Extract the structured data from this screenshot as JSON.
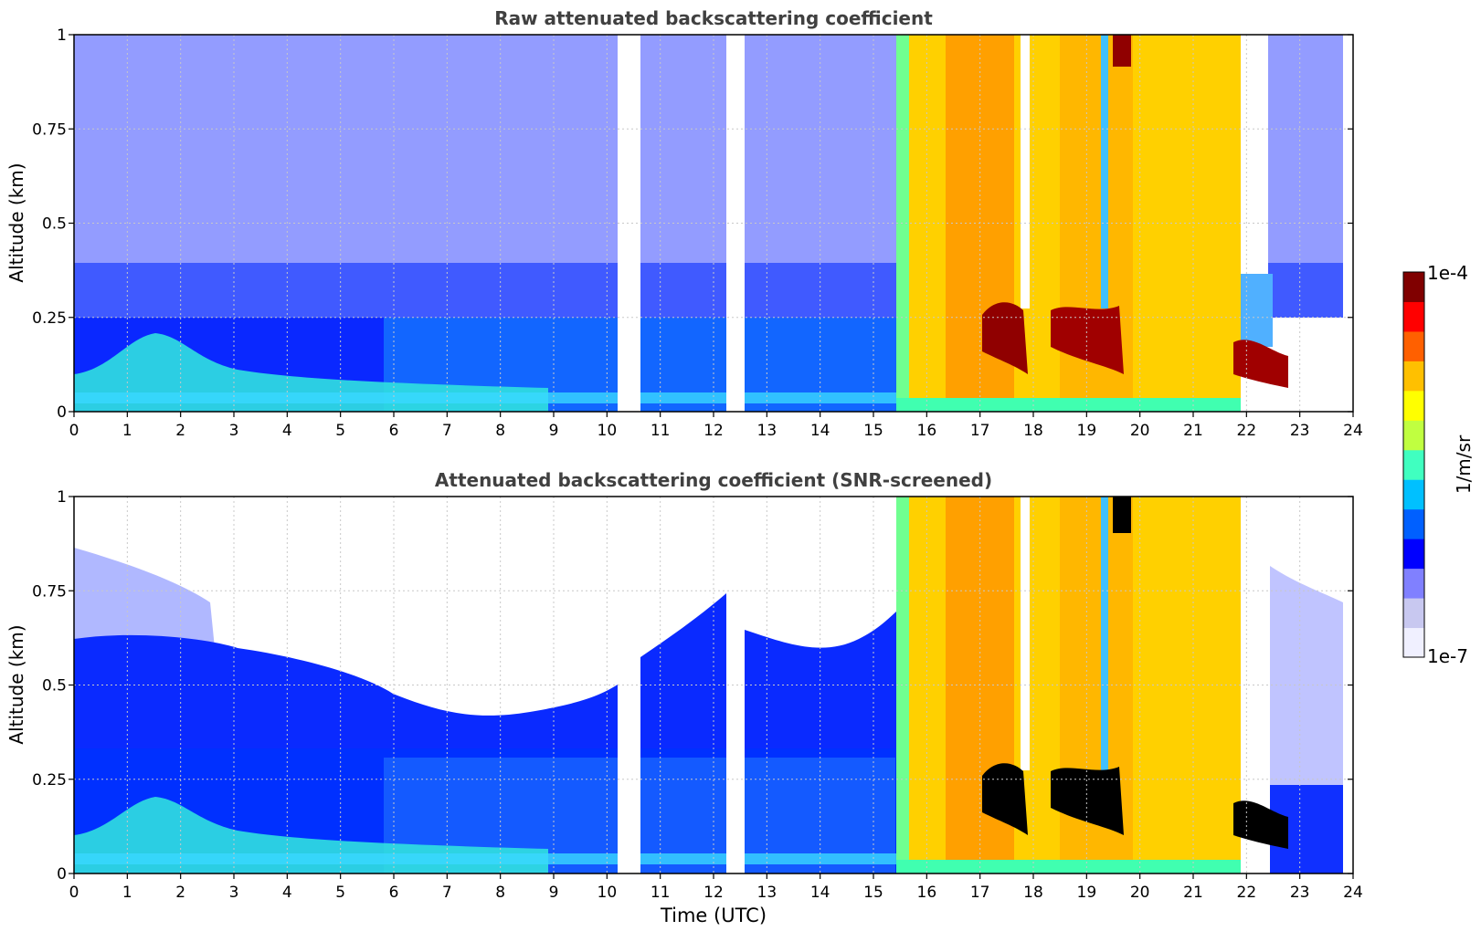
{
  "chart_data": [
    {
      "type": "heatmap",
      "title": "Raw attenuated backscattering coefficient",
      "xlabel": "",
      "ylabel": "Altitude (km)",
      "xlim": [
        0,
        24
      ],
      "ylim": [
        0,
        1
      ],
      "x_ticks": [
        "0",
        "1",
        "2",
        "3",
        "4",
        "5",
        "6",
        "7",
        "8",
        "9",
        "10",
        "11",
        "12",
        "13",
        "14",
        "15",
        "16",
        "17",
        "18",
        "19",
        "20",
        "21",
        "22",
        "23",
        "24"
      ],
      "y_ticks": [
        "0",
        "0.25",
        "0.5",
        "0.75",
        "1"
      ],
      "grid": true,
      "data_gaps_utc": [
        [
          10.15,
          10.55
        ],
        [
          12.25,
          12.6
        ]
      ],
      "regions": [
        {
          "x": [
            0,
            15.5
          ],
          "y": [
            0,
            0.25
          ],
          "level": "low (blue/cyan)"
        },
        {
          "x": [
            0.5,
            2.0
          ],
          "y": [
            0,
            0.17
          ],
          "level": "moderate (cyan/green)"
        },
        {
          "x": [
            15.5,
            21.8
          ],
          "y": [
            0,
            1
          ],
          "level": "high (yellow/orange)"
        },
        {
          "x": [
            17.0,
            19.6
          ],
          "y": [
            0.1,
            0.3
          ],
          "level": "very high (dark red)"
        },
        {
          "x": [
            21.8,
            22.7
          ],
          "y": [
            0.05,
            0.18
          ],
          "level": "very high (dark red)"
        },
        {
          "x": [
            19.4,
            19.7
          ],
          "y": [
            0.9,
            1.0
          ],
          "level": "very high (dark red)"
        }
      ]
    },
    {
      "type": "heatmap",
      "title": "Attenuated backscattering coefficient (SNR-screened)",
      "xlabel": "Time (UTC)",
      "ylabel": "Altitude (km)",
      "xlim": [
        0,
        24
      ],
      "ylim": [
        0,
        1
      ],
      "x_ticks": [
        "0",
        "1",
        "2",
        "3",
        "4",
        "5",
        "6",
        "7",
        "8",
        "9",
        "10",
        "11",
        "12",
        "13",
        "14",
        "15",
        "16",
        "17",
        "18",
        "19",
        "20",
        "21",
        "22",
        "23",
        "24"
      ],
      "y_ticks": [
        "0",
        "0.25",
        "0.5",
        "0.75",
        "1"
      ],
      "grid": true,
      "data_gaps_utc": [
        [
          10.15,
          10.55
        ],
        [
          12.25,
          12.6
        ]
      ],
      "screened_top_km": [
        [
          0,
          0.78
        ],
        [
          2,
          0.68
        ],
        [
          4,
          0.6
        ],
        [
          6,
          0.5
        ],
        [
          7,
          0.42
        ],
        [
          9,
          0.44
        ],
        [
          10,
          0.5
        ],
        [
          11,
          0.6
        ],
        [
          12,
          0.68
        ],
        [
          13,
          0.58
        ],
        [
          14,
          0.6
        ],
        [
          15,
          0.65
        ],
        [
          15.5,
          1.0
        ]
      ],
      "regions": [
        {
          "x": [
            0,
            15.5
          ],
          "y": [
            0,
            0.5
          ],
          "level": "low (blue)"
        },
        {
          "x": [
            0,
            2.5
          ],
          "y": [
            0.5,
            0.8
          ],
          "level": "very low (pale blue)"
        },
        {
          "x": [
            0.5,
            2.0
          ],
          "y": [
            0,
            0.17
          ],
          "level": "moderate (cyan/green)"
        },
        {
          "x": [
            15.5,
            21.8
          ],
          "y": [
            0,
            1
          ],
          "level": "high (yellow/orange)"
        },
        {
          "x": [
            17.0,
            19.6
          ],
          "y": [
            0.05,
            0.3
          ],
          "level": "very high (black)"
        },
        {
          "x": [
            21.8,
            22.7
          ],
          "y": [
            0.05,
            0.18
          ],
          "level": "very high (black)"
        },
        {
          "x": [
            22.8,
            23.8
          ],
          "y": [
            0.3,
            0.85
          ],
          "level": "very low (pale blue)"
        }
      ]
    }
  ],
  "colorbar": {
    "max_label": "1e-4",
    "min_label": "1e-7",
    "unit_label": "1/m/sr",
    "colors": [
      "#f0f0ff",
      "#c8c8f0",
      "#8080ff",
      "#0000ff",
      "#0060ff",
      "#00c0ff",
      "#40ffc0",
      "#c0ff40",
      "#ffff00",
      "#ffc000",
      "#ff6000",
      "#ff0000",
      "#800000"
    ]
  }
}
